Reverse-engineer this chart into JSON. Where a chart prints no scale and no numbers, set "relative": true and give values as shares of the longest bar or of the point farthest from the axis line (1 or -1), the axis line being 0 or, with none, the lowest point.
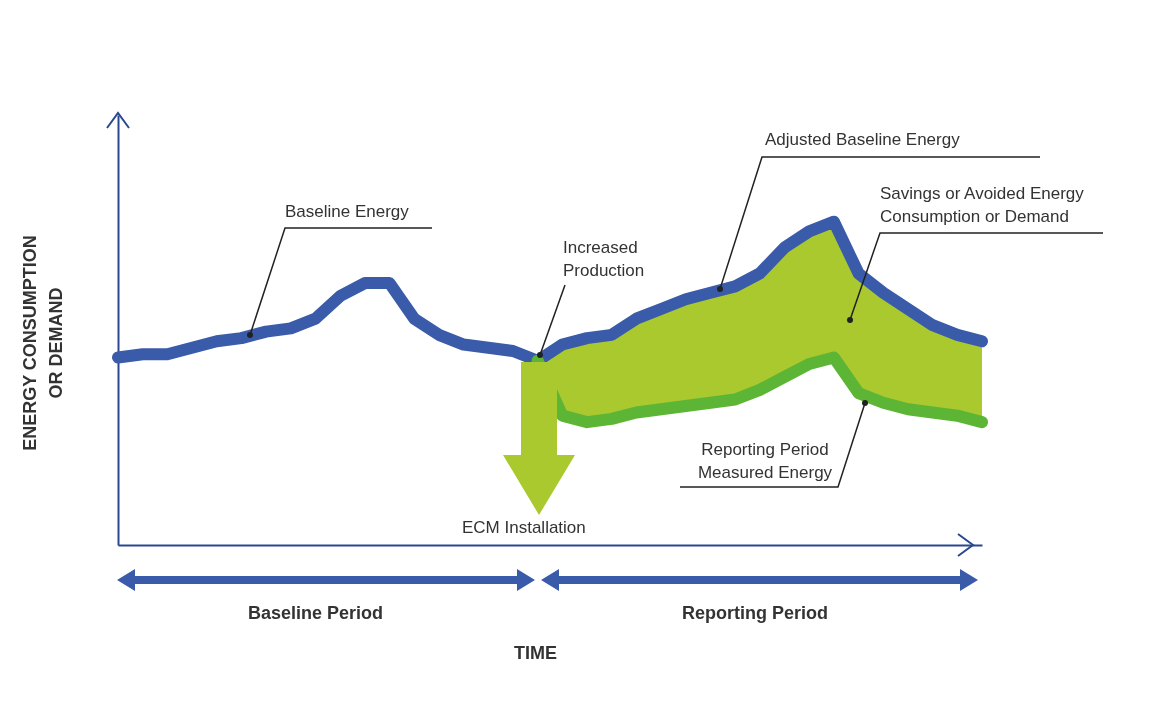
{
  "chart_data": {
    "type": "line",
    "relative": true,
    "ylabel": "ENERGY CONSUMPTION OR DEMAND",
    "categories": [
      null,
      null,
      null,
      null,
      null,
      null,
      null,
      null,
      null,
      null,
      null,
      null,
      null,
      null,
      null,
      null,
      null,
      null,
      null,
      null,
      null,
      null,
      null,
      null,
      null,
      null,
      null,
      null,
      null,
      null,
      null,
      null,
      null,
      null,
      null,
      null
    ],
    "series": [
      {
        "name": "Baseline Energy",
        "color": "#3a5ba9",
        "values": [
          0.58,
          0.59,
          0.59,
          0.61,
          0.63,
          0.64,
          0.66,
          0.67,
          0.7,
          0.77,
          0.81,
          0.81,
          0.7,
          0.65,
          0.62,
          0.61,
          0.6,
          0.57,
          null,
          null,
          null,
          null,
          null,
          null,
          null,
          null,
          null,
          null,
          null,
          null,
          null,
          null,
          null,
          null,
          null,
          null
        ]
      },
      {
        "name": "Adjusted Baseline Energy",
        "color": "#3a5ba9",
        "values": [
          null,
          null,
          null,
          null,
          null,
          null,
          null,
          null,
          null,
          null,
          null,
          null,
          null,
          null,
          null,
          null,
          null,
          0.57,
          0.62,
          0.64,
          0.65,
          0.7,
          0.73,
          0.76,
          0.78,
          0.8,
          0.84,
          0.92,
          0.97,
          1,
          0.84,
          0.78,
          0.73,
          0.68,
          0.65,
          0.63
        ],
        "lower": [
          null,
          null,
          null,
          null,
          null,
          null,
          null,
          null,
          null,
          null,
          null,
          null,
          null,
          null,
          null,
          null,
          null,
          0.57,
          0.4,
          0.38,
          0.39,
          0.41,
          0.42,
          0.43,
          0.44,
          0.45,
          0.48,
          0.52,
          0.56,
          0.58,
          0.47,
          0.44,
          0.42,
          0.41,
          0.4,
          0.38
        ],
        "upper": [
          null,
          null,
          null,
          null,
          null,
          null,
          null,
          null,
          null,
          null,
          null,
          null,
          null,
          null,
          null,
          null,
          null,
          0.57,
          0.62,
          0.64,
          0.65,
          0.7,
          0.73,
          0.76,
          0.78,
          0.8,
          0.84,
          0.92,
          0.97,
          1,
          0.84,
          0.78,
          0.73,
          0.68,
          0.65,
          0.63
        ]
      },
      {
        "name": "Reporting Period Measured Energy",
        "color": "#5db535",
        "values": [
          null,
          null,
          null,
          null,
          null,
          null,
          null,
          null,
          null,
          null,
          null,
          null,
          null,
          null,
          null,
          null,
          null,
          0.57,
          0.4,
          0.38,
          0.39,
          0.41,
          0.42,
          0.43,
          0.44,
          0.45,
          0.48,
          0.52,
          0.56,
          0.58,
          0.47,
          0.44,
          0.42,
          0.41,
          0.4,
          0.38
        ]
      }
    ],
    "annotations": [
      "Savings or Avoided Energy Consumption or Demand",
      "Increased Production",
      "ECM Installation",
      "Baseline Period",
      "Reporting Period",
      "TIME"
    ]
  }
}
